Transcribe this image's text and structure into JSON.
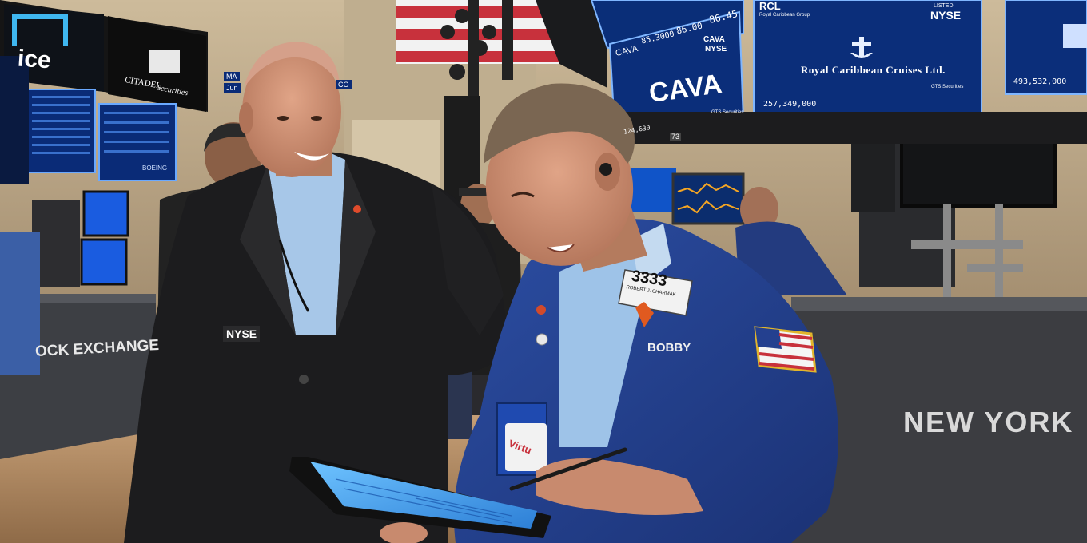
{
  "colors": {
    "wall": "#d9cbb3",
    "floor": "#b08a62",
    "screen_blue": "#0b2a6b",
    "screen_border": "#6aa9ff",
    "jacket_black": "#1b1b1d",
    "jacket_blue": "#24408f",
    "shirt_blue": "#9ec3e8",
    "skin": "#c88a6e",
    "counter": "#3a3b3f"
  },
  "signs": {
    "ice_logo": "ice",
    "citadel_line1": "CITADEL",
    "citadel_line2": "Securities",
    "booth_left_small": "MA",
    "booth_left_small2": "Jun",
    "booth_left_small3": "CO",
    "stock_exchange_banner": "OCK EXCHANGE",
    "new_york_banner": "NEW YORK",
    "boeing_label": "BOEING",
    "booth_number": "73"
  },
  "screens": {
    "cava": {
      "ticker": "CAVA",
      "company": "CAVA",
      "price_high": "86.45",
      "price_mid": "86.00",
      "price_low": "85.3000",
      "listed_line1": "CAVA",
      "listed_line2": "NYSE",
      "volume": "124,630",
      "broker": "GTS Securities"
    },
    "rcl": {
      "ticker": "RCL",
      "subtitle": "Royal Caribbean Group",
      "listed_line1": "LISTED",
      "listed_line2": "NYSE",
      "company": "Royal Caribbean Cruises Ltd.",
      "volume": "257,349,000",
      "broker": "GTS Securities"
    },
    "right_edge": {
      "volume": "493,532,000"
    }
  },
  "people": {
    "left_man_badge_brand": "NYSE",
    "right_man_badge_number": "3333",
    "right_man_badge_name": "ROBERT J. CHARMAK",
    "right_man_name_tag": "BOBBY",
    "pocket_card_brand": "Virtu"
  }
}
